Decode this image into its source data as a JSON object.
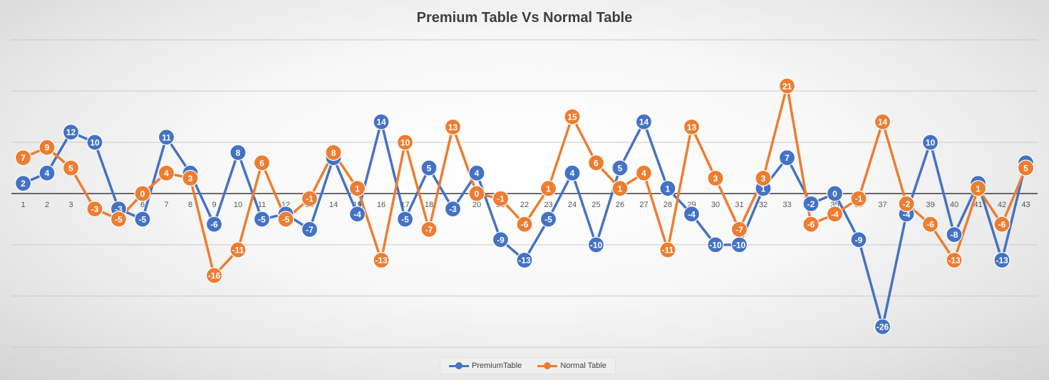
{
  "chart_data": {
    "type": "line",
    "title": "Premium Table Vs Normal Table",
    "xlabel": "",
    "ylabel": "",
    "ylim": [
      -30,
      30
    ],
    "grid": true,
    "legend_position": "bottom",
    "categories": [
      "1",
      "2",
      "3",
      "4",
      "5",
      "6",
      "7",
      "8",
      "9",
      "10",
      "11",
      "12",
      "13",
      "14",
      "15",
      "16",
      "17",
      "18",
      "19",
      "20",
      "21",
      "22",
      "23",
      "24",
      "25",
      "26",
      "27",
      "28",
      "29",
      "30",
      "31",
      "32",
      "33",
      "34",
      "35",
      "36",
      "37",
      "38",
      "39",
      "40",
      "41",
      "42",
      "43"
    ],
    "series": [
      {
        "name": "PremiumTable",
        "color": "#4472c4",
        "values": [
          2,
          4,
          12,
          10,
          -3,
          -5,
          11,
          4,
          -6,
          8,
          -5,
          -4,
          -7,
          7,
          -4,
          14,
          -5,
          5,
          -3,
          4,
          -9,
          -13,
          -5,
          4,
          -10,
          5,
          14,
          1,
          -4,
          -10,
          -10,
          1,
          7,
          -2,
          0,
          -9,
          -26,
          -4,
          10,
          -8,
          2,
          -13,
          6
        ]
      },
      {
        "name": "Normal Table",
        "color": "#ed7d31",
        "values": [
          7,
          9,
          5,
          -3,
          -5,
          0,
          4,
          3,
          -16,
          -11,
          6,
          -5,
          -1,
          8,
          1,
          -13,
          10,
          -7,
          13,
          0,
          -1,
          -6,
          1,
          15,
          6,
          1,
          4,
          -11,
          13,
          3,
          -7,
          3,
          21,
          -6,
          -4,
          -1,
          14,
          -2,
          -6,
          -13,
          1,
          -6,
          5
        ]
      }
    ]
  }
}
